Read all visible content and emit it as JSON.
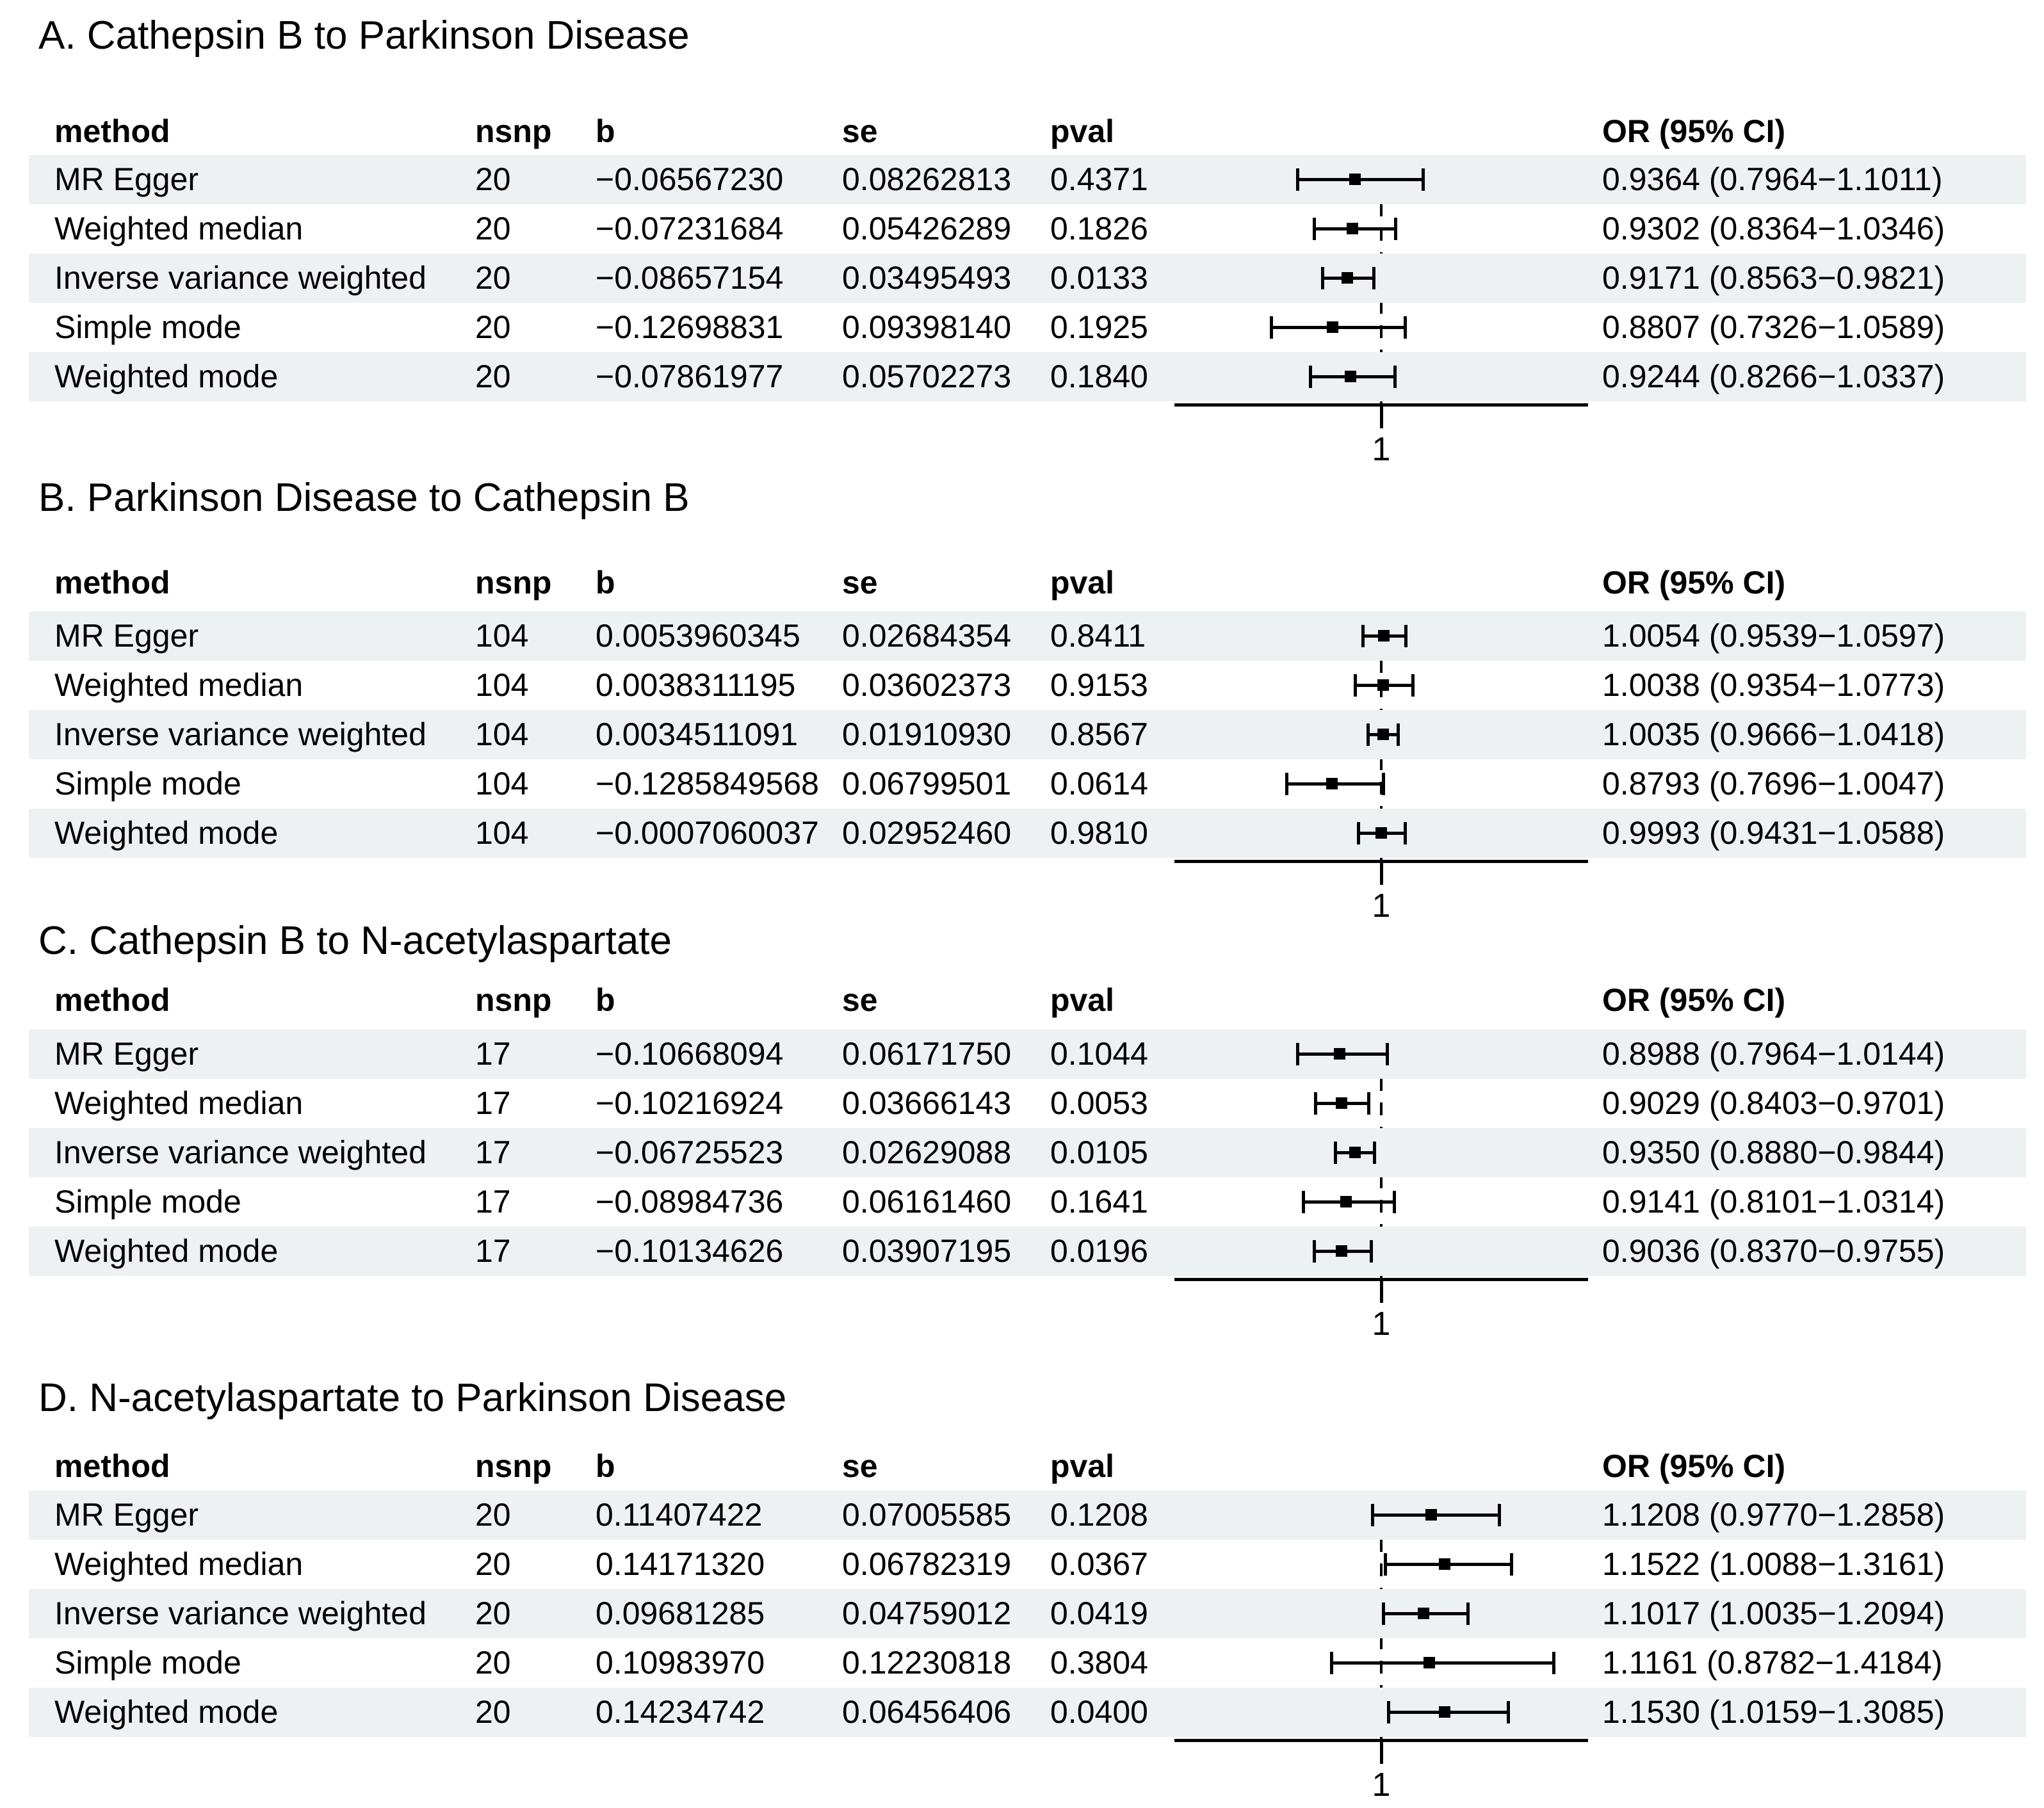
{
  "figure": {
    "background": "#ffffff",
    "stripe_color": "#edf1f2",
    "text_color": "#000000",
    "axis_tick_label": "1"
  },
  "headers": {
    "method": "method",
    "nsnp": "nsnp",
    "b": "b",
    "se": "se",
    "pval": "pval",
    "or": "OR (95% CI)"
  },
  "panels": [
    {
      "title": "A. Cathepsin B to Parkinson Disease",
      "rows": [
        {
          "method": "MR Egger",
          "nsnp": "20",
          "b": "−0.06567230",
          "se": "0.08262813",
          "pval": "0.4371",
          "or_text": "0.9364 (0.7964−1.1011)",
          "or": 0.9364,
          "lo": 0.7964,
          "hi": 1.1011
        },
        {
          "method": "Weighted median",
          "nsnp": "20",
          "b": "−0.07231684",
          "se": "0.05426289",
          "pval": "0.1826",
          "or_text": "0.9302 (0.8364−1.0346)",
          "or": 0.9302,
          "lo": 0.8364,
          "hi": 1.0346
        },
        {
          "method": "Inverse variance weighted",
          "nsnp": "20",
          "b": "−0.08657154",
          "se": "0.03495493",
          "pval": "0.0133",
          "or_text": "0.9171 (0.8563−0.9821)",
          "or": 0.9171,
          "lo": 0.8563,
          "hi": 0.9821
        },
        {
          "method": "Simple mode",
          "nsnp": "20",
          "b": "−0.12698831",
          "se": "0.09398140",
          "pval": "0.1925",
          "or_text": "0.8807 (0.7326−1.0589)",
          "or": 0.8807,
          "lo": 0.7326,
          "hi": 1.0589
        },
        {
          "method": "Weighted mode",
          "nsnp": "20",
          "b": "−0.07861977",
          "se": "0.05702273",
          "pval": "0.1840",
          "or_text": "0.9244 (0.8266−1.0337)",
          "or": 0.9244,
          "lo": 0.8266,
          "hi": 1.0337
        }
      ]
    },
    {
      "title": "B. Parkinson Disease to Cathepsin B",
      "rows": [
        {
          "method": "MR Egger",
          "nsnp": "104",
          "b": "0.0053960345",
          "se": "0.02684354",
          "pval": "0.8411",
          "or_text": "1.0054 (0.9539−1.0597)",
          "or": 1.0054,
          "lo": 0.9539,
          "hi": 1.0597
        },
        {
          "method": "Weighted median",
          "nsnp": "104",
          "b": "0.0038311195",
          "se": "0.03602373",
          "pval": "0.9153",
          "or_text": "1.0038 (0.9354−1.0773)",
          "or": 1.0038,
          "lo": 0.9354,
          "hi": 1.0773
        },
        {
          "method": "Inverse variance weighted",
          "nsnp": "104",
          "b": "0.0034511091",
          "se": "0.01910930",
          "pval": "0.8567",
          "or_text": "1.0035 (0.9666−1.0418)",
          "or": 1.0035,
          "lo": 0.9666,
          "hi": 1.0418
        },
        {
          "method": "Simple mode",
          "nsnp": "104",
          "b": "−0.1285849568",
          "se": "0.06799501",
          "pval": "0.0614",
          "or_text": "0.8793 (0.7696−1.0047)",
          "or": 0.8793,
          "lo": 0.7696,
          "hi": 1.0047
        },
        {
          "method": "Weighted mode",
          "nsnp": "104",
          "b": "−0.0007060037",
          "se": "0.02952460",
          "pval": "0.9810",
          "or_text": "0.9993 (0.9431−1.0588)",
          "or": 0.9993,
          "lo": 0.9431,
          "hi": 1.0588
        }
      ]
    },
    {
      "title": "C. Cathepsin B to N-acetylaspartate",
      "rows": [
        {
          "method": "MR Egger",
          "nsnp": "17",
          "b": "−0.10668094",
          "se": "0.06171750",
          "pval": "0.1044",
          "or_text": "0.8988 (0.7964−1.0144)",
          "or": 0.8988,
          "lo": 0.7964,
          "hi": 1.0144
        },
        {
          "method": "Weighted median",
          "nsnp": "17",
          "b": "−0.10216924",
          "se": "0.03666143",
          "pval": "0.0053",
          "or_text": "0.9029 (0.8403−0.9701)",
          "or": 0.9029,
          "lo": 0.8403,
          "hi": 0.9701
        },
        {
          "method": "Inverse variance weighted",
          "nsnp": "17",
          "b": "−0.06725523",
          "se": "0.02629088",
          "pval": "0.0105",
          "or_text": "0.9350 (0.8880−0.9844)",
          "or": 0.935,
          "lo": 0.888,
          "hi": 0.9844
        },
        {
          "method": "Simple mode",
          "nsnp": "17",
          "b": "−0.08984736",
          "se": "0.06161460",
          "pval": "0.1641",
          "or_text": "0.9141 (0.8101−1.0314)",
          "or": 0.9141,
          "lo": 0.8101,
          "hi": 1.0314
        },
        {
          "method": "Weighted mode",
          "nsnp": "17",
          "b": "−0.10134626",
          "se": "0.03907195",
          "pval": "0.0196",
          "or_text": "0.9036 (0.8370−0.9755)",
          "or": 0.9036,
          "lo": 0.837,
          "hi": 0.9755
        }
      ]
    },
    {
      "title": "D. N-acetylaspartate to Parkinson Disease",
      "rows": [
        {
          "method": "MR Egger",
          "nsnp": "20",
          "b": "0.11407422",
          "se": "0.07005585",
          "pval": "0.1208",
          "or_text": "1.1208 (0.9770−1.2858)",
          "or": 1.1208,
          "lo": 0.977,
          "hi": 1.2858
        },
        {
          "method": "Weighted median",
          "nsnp": "20",
          "b": "0.14171320",
          "se": "0.06782319",
          "pval": "0.0367",
          "or_text": "1.1522 (1.0088−1.3161)",
          "or": 1.1522,
          "lo": 1.0088,
          "hi": 1.3161
        },
        {
          "method": "Inverse variance weighted",
          "nsnp": "20",
          "b": "0.09681285",
          "se": "0.04759012",
          "pval": "0.0419",
          "or_text": "1.1017 (1.0035−1.2094)",
          "or": 1.1017,
          "lo": 1.0035,
          "hi": 1.2094
        },
        {
          "method": "Simple mode",
          "nsnp": "20",
          "b": "0.10983970",
          "se": "0.12230818",
          "pval": "0.3804",
          "or_text": "1.1161 (0.8782−1.4184)",
          "or": 1.1161,
          "lo": 0.8782,
          "hi": 1.4184
        },
        {
          "method": "Weighted mode",
          "nsnp": "20",
          "b": "0.14234742",
          "se": "0.06456406",
          "pval": "0.0400",
          "or_text": "1.1530 (1.0159−1.3085)",
          "or": 1.153,
          "lo": 1.0159,
          "hi": 1.3085
        }
      ]
    }
  ],
  "chart_data": [
    {
      "type": "forest",
      "title": "A. Cathepsin B to Parkinson Disease",
      "categories": [
        "MR Egger",
        "Weighted median",
        "Inverse variance weighted",
        "Simple mode",
        "Weighted mode"
      ],
      "nsnp": [
        20,
        20,
        20,
        20,
        20
      ],
      "b": [
        -0.0656723,
        -0.07231684,
        -0.08657154,
        -0.12698831,
        -0.07861977
      ],
      "se": [
        0.08262813,
        0.05426289,
        0.03495493,
        0.0939814,
        0.05702273
      ],
      "pval": [
        0.4371,
        0.1826,
        0.0133,
        0.1925,
        0.184
      ],
      "or": [
        0.9364,
        0.9302,
        0.9171,
        0.8807,
        0.9244
      ],
      "ci_low": [
        0.7964,
        0.8364,
        0.8563,
        0.7326,
        0.8266
      ],
      "ci_high": [
        1.1011,
        1.0346,
        0.9821,
        1.0589,
        1.0337
      ],
      "ref_line": 1,
      "xlim": [
        0.5,
        1.5
      ],
      "x_tick_labels": [
        "1"
      ],
      "legend": "none"
    },
    {
      "type": "forest",
      "title": "B. Parkinson Disease to Cathepsin B",
      "categories": [
        "MR Egger",
        "Weighted median",
        "Inverse variance weighted",
        "Simple mode",
        "Weighted mode"
      ],
      "nsnp": [
        104,
        104,
        104,
        104,
        104
      ],
      "b": [
        0.0053960345,
        0.0038311195,
        0.0034511091,
        -0.1285849568,
        -0.0007060037
      ],
      "se": [
        0.02684354,
        0.03602373,
        0.0191093,
        0.06799501,
        0.0295246
      ],
      "pval": [
        0.8411,
        0.9153,
        0.8567,
        0.0614,
        0.981
      ],
      "or": [
        1.0054,
        1.0038,
        1.0035,
        0.8793,
        0.9993
      ],
      "ci_low": [
        0.9539,
        0.9354,
        0.9666,
        0.7696,
        0.9431
      ],
      "ci_high": [
        1.0597,
        1.0773,
        1.0418,
        1.0047,
        1.0588
      ],
      "ref_line": 1,
      "xlim": [
        0.5,
        1.5
      ],
      "x_tick_labels": [
        "1"
      ],
      "legend": "none"
    },
    {
      "type": "forest",
      "title": "C. Cathepsin B to N-acetylaspartate",
      "categories": [
        "MR Egger",
        "Weighted median",
        "Inverse variance weighted",
        "Simple mode",
        "Weighted mode"
      ],
      "nsnp": [
        17,
        17,
        17,
        17,
        17
      ],
      "b": [
        -0.10668094,
        -0.10216924,
        -0.06725523,
        -0.08984736,
        -0.10134626
      ],
      "se": [
        0.0617175,
        0.03666143,
        0.02629088,
        0.0616146,
        0.03907195
      ],
      "pval": [
        0.1044,
        0.0053,
        0.0105,
        0.1641,
        0.0196
      ],
      "or": [
        0.8988,
        0.9029,
        0.935,
        0.9141,
        0.9036
      ],
      "ci_low": [
        0.7964,
        0.8403,
        0.888,
        0.8101,
        0.837
      ],
      "ci_high": [
        1.0144,
        0.9701,
        0.9844,
        1.0314,
        0.9755
      ],
      "ref_line": 1,
      "xlim": [
        0.5,
        1.5
      ],
      "x_tick_labels": [
        "1"
      ],
      "legend": "none"
    },
    {
      "type": "forest",
      "title": "D. N-acetylaspartate to Parkinson Disease",
      "categories": [
        "MR Egger",
        "Weighted median",
        "Inverse variance weighted",
        "Simple mode",
        "Weighted mode"
      ],
      "nsnp": [
        20,
        20,
        20,
        20,
        20
      ],
      "b": [
        0.11407422,
        0.1417132,
        0.09681285,
        0.1098397,
        0.14234742
      ],
      "se": [
        0.07005585,
        0.06782319,
        0.04759012,
        0.12230818,
        0.06456406
      ],
      "pval": [
        0.1208,
        0.0367,
        0.0419,
        0.3804,
        0.04
      ],
      "or": [
        1.1208,
        1.1522,
        1.1017,
        1.1161,
        1.153
      ],
      "ci_low": [
        0.977,
        1.0088,
        1.0035,
        0.8782,
        1.0159
      ],
      "ci_high": [
        1.2858,
        1.3161,
        1.2094,
        1.4184,
        1.3085
      ],
      "ref_line": 1,
      "xlim": [
        0.5,
        1.5
      ],
      "x_tick_labels": [
        "1"
      ],
      "legend": "none"
    }
  ]
}
